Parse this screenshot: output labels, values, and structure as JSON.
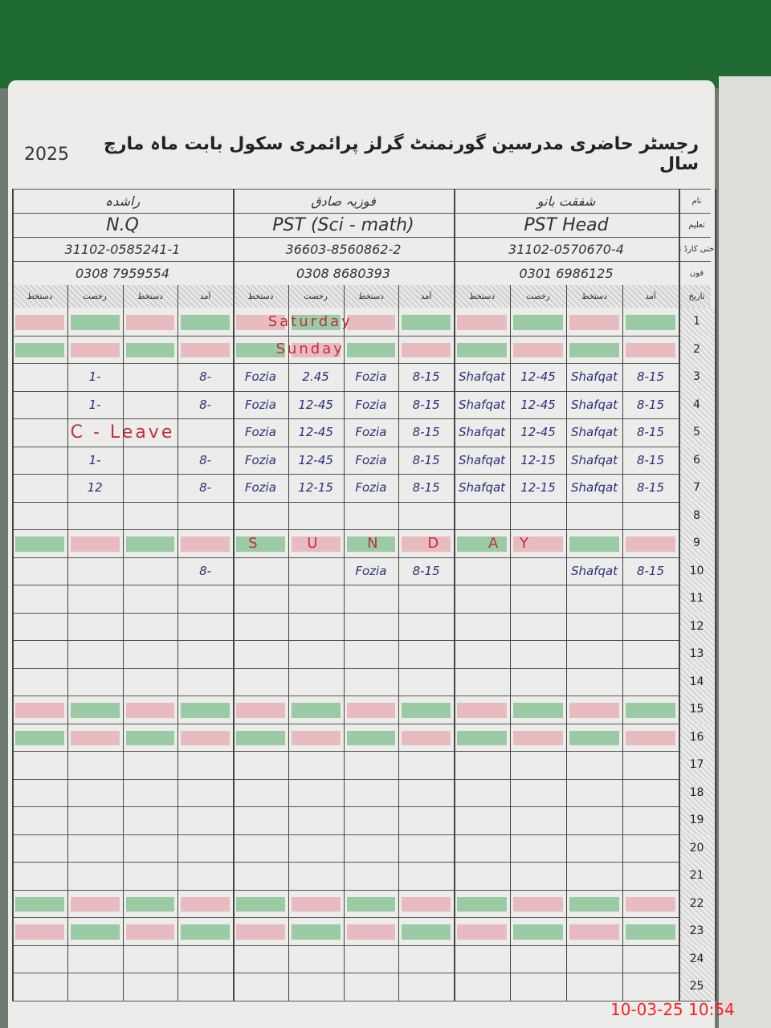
{
  "header": {
    "title": "رجسٹر حاضری مدرسین گورنمنٹ گرلز پرائمری سکول بابت ماہ مارچ سال",
    "year": "2025"
  },
  "info_labels": [
    "نام",
    "تعلیم",
    "شناختی کارڈ نمبر",
    "فون"
  ],
  "teachers": [
    {
      "name": "راشدہ",
      "qualification": "N.Q",
      "cnic": "31102-0585241-1",
      "phone": "0308 7959554"
    },
    {
      "name": "فوزیہ صادق",
      "qualification": "PST (Sci - math)",
      "cnic": "36603-8560862-2",
      "phone": "0308 8680393"
    },
    {
      "name": "شفقت بانو",
      "qualification": "PST Head",
      "cnic": "31102-0570670-4",
      "phone": "0301 6986125"
    }
  ],
  "column_headers": [
    "دستخط",
    "رخصت",
    "دستخط",
    "آمد"
  ],
  "day_header": "تاریخ",
  "rows": [
    {
      "day": "1",
      "shade": "pink",
      "note": "Saturday"
    },
    {
      "day": "2",
      "shade": "green",
      "note": "Sunday"
    },
    {
      "day": "3",
      "cells": [
        null,
        "1-",
        null,
        "8-",
        "Fozia",
        "2.45",
        "Fozia",
        "8-15",
        "Shafqat",
        "12-45",
        "Shafqat",
        "8-15"
      ]
    },
    {
      "day": "4",
      "cells": [
        null,
        "1-",
        null,
        "8-",
        "Fozia",
        "12-45",
        "Fozia",
        "8-15",
        "Shafqat",
        "12-45",
        "Shafqat",
        "8-15"
      ]
    },
    {
      "day": "5",
      "note": "C - Leave",
      "cells": [
        null,
        null,
        null,
        null,
        "Fozia",
        "12-45",
        "Fozia",
        "8-15",
        "Shafqat",
        "12-45",
        "Shafqat",
        "8-15"
      ]
    },
    {
      "day": "6",
      "cells": [
        null,
        "1-",
        null,
        "8-",
        "Fozia",
        "12-45",
        "Fozia",
        "8-15",
        "Shafqat",
        "12-15",
        "Shafqat",
        "8-15"
      ]
    },
    {
      "day": "7",
      "cells": [
        null,
        "12",
        null,
        "8-",
        "Fozia",
        "12-15",
        "Fozia",
        "8-15",
        "Shafqat",
        "12-15",
        "Shafqat",
        "8-15"
      ]
    },
    {
      "day": "8"
    },
    {
      "day": "9",
      "shade": "green",
      "note": "S U N D AY"
    },
    {
      "day": "10",
      "cells": [
        null,
        null,
        null,
        "8-",
        null,
        null,
        "Fozia",
        "8-15",
        null,
        null,
        "Shafqat",
        "8-15"
      ]
    },
    {
      "day": "11"
    },
    {
      "day": "12"
    },
    {
      "day": "13"
    },
    {
      "day": "14"
    },
    {
      "day": "15",
      "shade": "pink"
    },
    {
      "day": "16",
      "shade": "green"
    },
    {
      "day": "17"
    },
    {
      "day": "18"
    },
    {
      "day": "19"
    },
    {
      "day": "20"
    },
    {
      "day": "21"
    },
    {
      "day": "22",
      "shade": "green"
    },
    {
      "day": "23",
      "shade": "pink"
    },
    {
      "day": "24"
    },
    {
      "day": "25"
    }
  ],
  "timestamp": "10-03-25  10:54"
}
